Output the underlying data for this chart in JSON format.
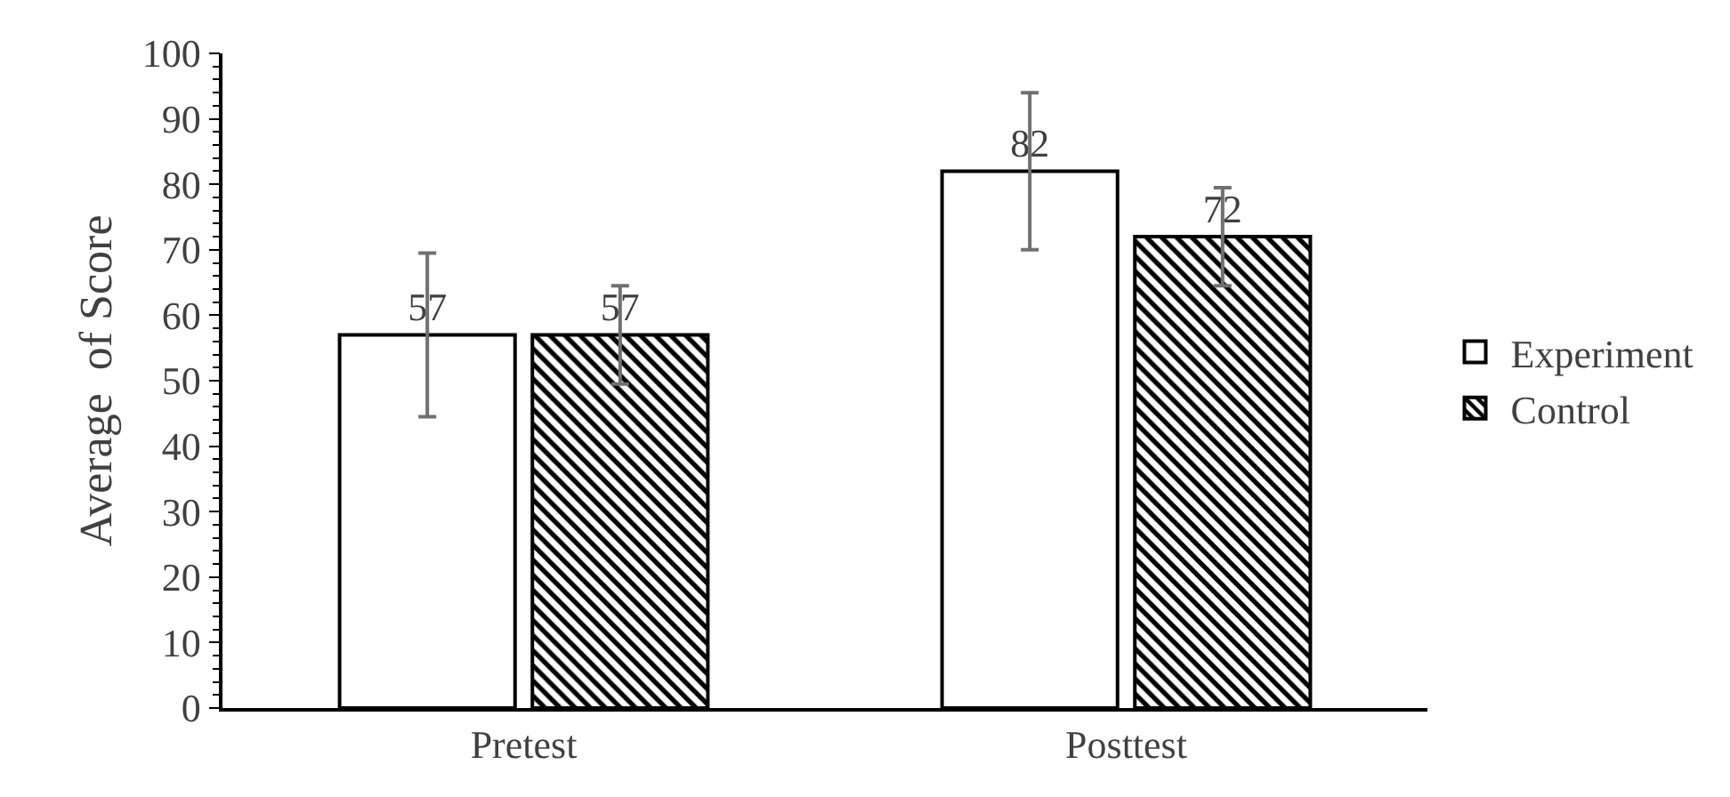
{
  "chart_data": {
    "type": "bar",
    "ylabel": "Average  of Score",
    "categories": [
      "Pretest",
      "Posttest"
    ],
    "series": [
      {
        "name": "Experiment",
        "color": "#ffffff",
        "values": [
          57,
          82
        ],
        "errors": [
          12.5,
          12
        ]
      },
      {
        "name": "Control",
        "color": "#000000",
        "values": [
          57,
          72
        ],
        "errors": [
          7.5,
          7.5
        ]
      }
    ],
    "ylim": [
      0,
      100
    ],
    "yticks": [
      0,
      10,
      20,
      30,
      40,
      50,
      60,
      70,
      80,
      90,
      100
    ],
    "grid": false,
    "legend": "right",
    "data_labels": true
  }
}
